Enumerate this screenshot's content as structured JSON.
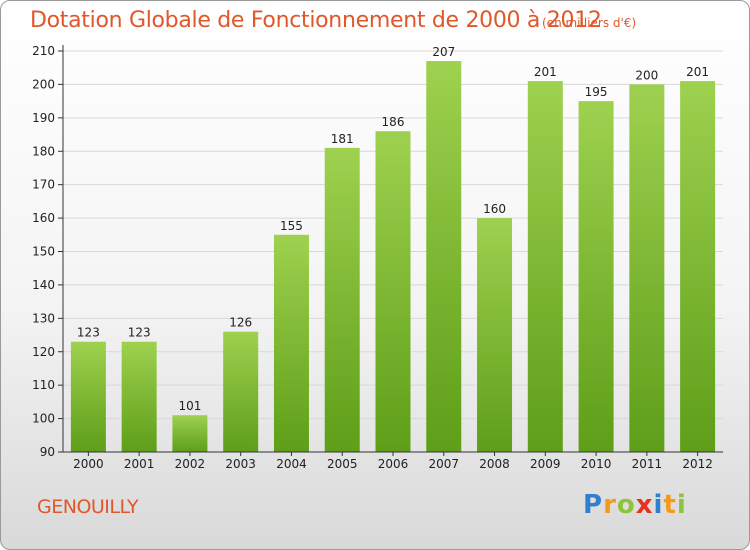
{
  "header": {
    "title": "Dotation Globale de Fonctionnement de 2000 à 2012",
    "unit": "(en milliers d'€)"
  },
  "footer": {
    "place": "GENOUILLY",
    "logo_letters": [
      "P",
      "r",
      "o",
      "x",
      "i",
      "t",
      "i"
    ]
  },
  "colors": {
    "title": "#e0572a",
    "bar_light": "#9ed14f",
    "bar_dark": "#5e9e18",
    "grid": "#d8d8d8",
    "axis": "#333333"
  },
  "chart_data": {
    "type": "bar",
    "title": "Dotation Globale de Fonctionnement de 2000 à 2012",
    "subtitle": "(en milliers d'€)",
    "xlabel": "",
    "ylabel": "",
    "categories": [
      "2000",
      "2001",
      "2002",
      "2003",
      "2004",
      "2005",
      "2006",
      "2007",
      "2008",
      "2009",
      "2010",
      "2011",
      "2012"
    ],
    "values": [
      123,
      123,
      101,
      126,
      155,
      181,
      186,
      207,
      160,
      201,
      195,
      200,
      201
    ],
    "ylim": [
      90,
      210
    ],
    "yticks": [
      90,
      100,
      110,
      120,
      130,
      140,
      150,
      160,
      170,
      180,
      190,
      200,
      210
    ],
    "grid": true,
    "legend": "none"
  }
}
